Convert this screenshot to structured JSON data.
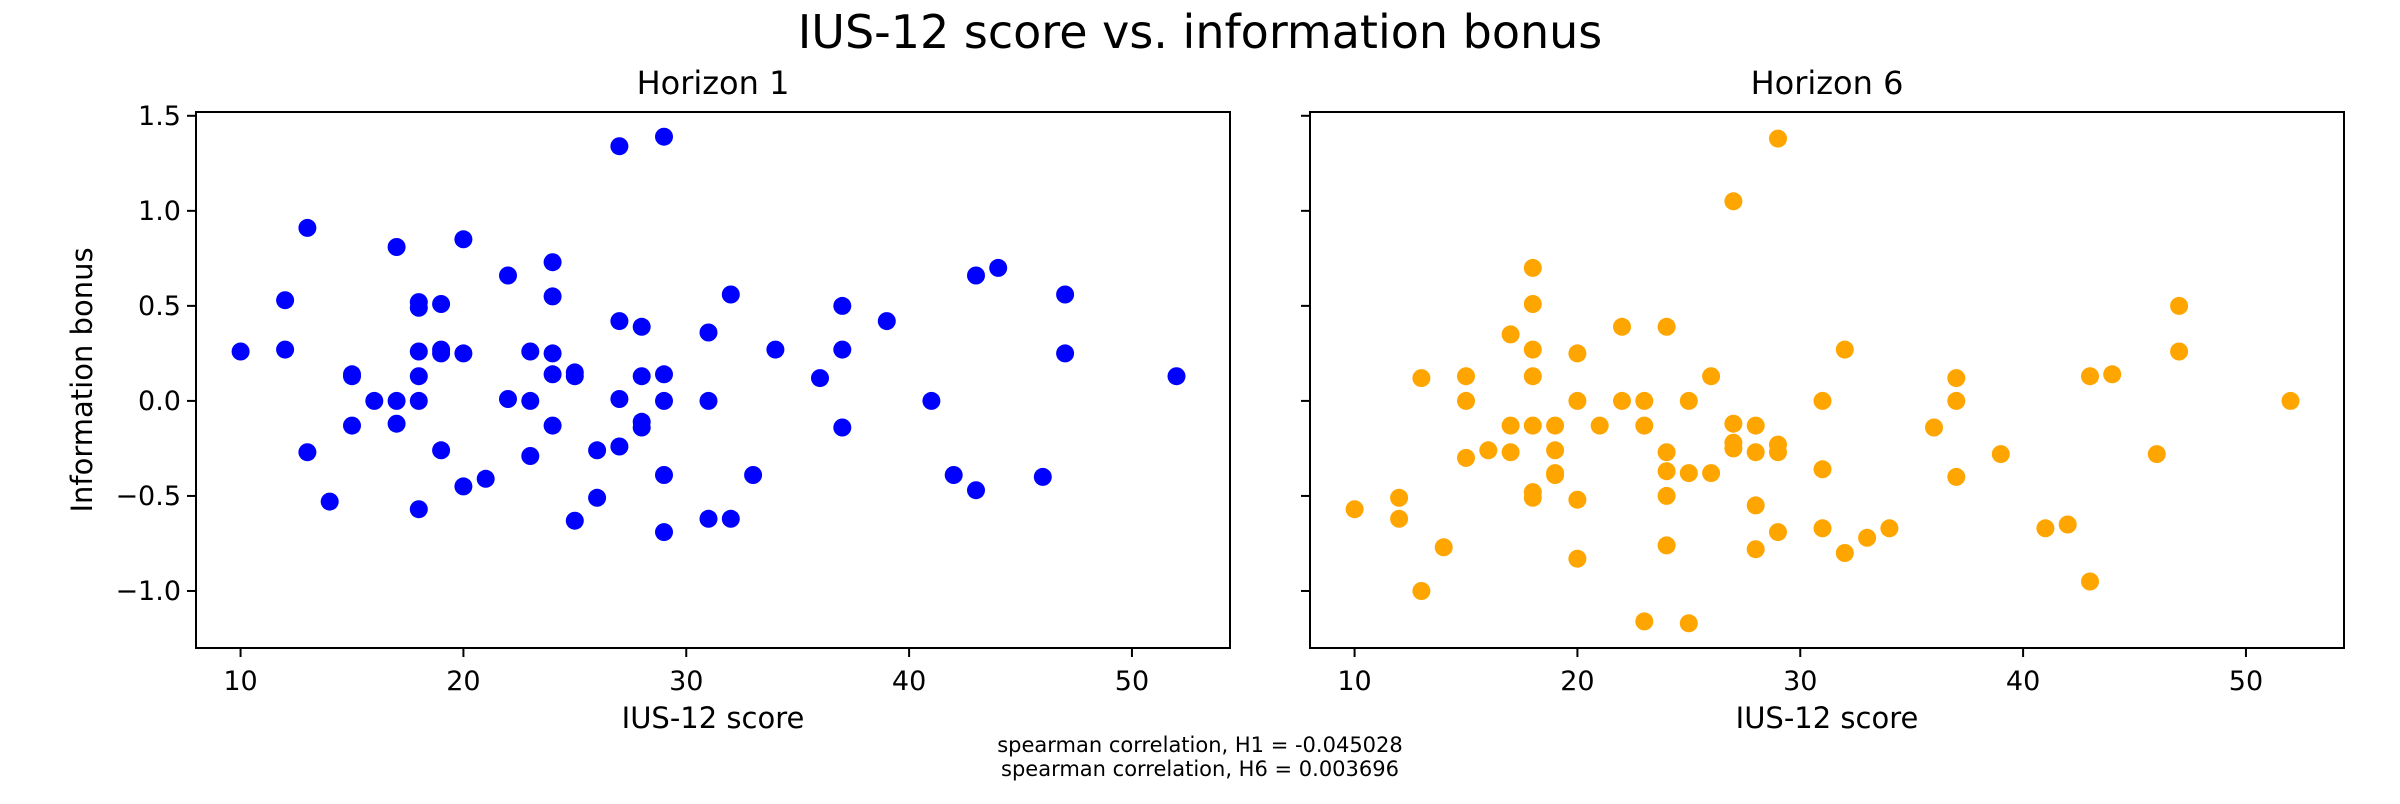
{
  "figure": {
    "title": "IUS-12 score vs. information bonus",
    "footnotes": [
      "spearman correlation, H1 = -0.045028",
      "spearman correlation, H6 = 0.003696"
    ]
  },
  "chart_data": [
    {
      "type": "scatter",
      "title": "Horizon 1",
      "xlabel": "IUS-12 score",
      "ylabel": "Information bonus",
      "xlim": [
        8,
        54.4
      ],
      "ylim": [
        -1.3,
        1.52
      ],
      "xticks": [
        10,
        20,
        30,
        40,
        50
      ],
      "yticks": [
        -1.0,
        -0.5,
        0.0,
        0.5,
        1.0,
        1.5
      ],
      "grid": false,
      "color": "#0000ff",
      "points": [
        [
          10,
          0.26
        ],
        [
          12,
          0.53
        ],
        [
          12,
          0.27
        ],
        [
          13,
          0.91
        ],
        [
          13,
          -0.27
        ],
        [
          14,
          -0.53
        ],
        [
          15,
          0.14
        ],
        [
          15,
          0.13
        ],
        [
          15,
          -0.13
        ],
        [
          16,
          0.0
        ],
        [
          17,
          0.81
        ],
        [
          17,
          0.0
        ],
        [
          17,
          -0.12
        ],
        [
          18,
          0.52
        ],
        [
          18,
          0.49
        ],
        [
          18,
          0.26
        ],
        [
          18,
          0.13
        ],
        [
          18,
          0.0
        ],
        [
          18,
          -0.57
        ],
        [
          19,
          0.51
        ],
        [
          19,
          0.27
        ],
        [
          19,
          0.25
        ],
        [
          19,
          -0.26
        ],
        [
          20,
          0.85
        ],
        [
          20,
          0.25
        ],
        [
          20,
          -0.45
        ],
        [
          21,
          -0.41
        ],
        [
          22,
          0.66
        ],
        [
          22,
          0.01
        ],
        [
          23,
          0.26
        ],
        [
          23,
          0.0
        ],
        [
          23,
          -0.29
        ],
        [
          24,
          0.73
        ],
        [
          24,
          0.55
        ],
        [
          24,
          0.25
        ],
        [
          24,
          0.14
        ],
        [
          24,
          -0.13
        ],
        [
          25,
          0.15
        ],
        [
          25,
          0.13
        ],
        [
          25,
          -0.63
        ],
        [
          26,
          -0.26
        ],
        [
          26,
          -0.51
        ],
        [
          27,
          1.34
        ],
        [
          27,
          0.42
        ],
        [
          27,
          0.01
        ],
        [
          27,
          -0.24
        ],
        [
          28,
          0.39
        ],
        [
          28,
          0.13
        ],
        [
          28,
          -0.11
        ],
        [
          28,
          -0.14
        ],
        [
          29,
          1.39
        ],
        [
          29,
          0.14
        ],
        [
          29,
          0.0
        ],
        [
          29,
          -0.39
        ],
        [
          29,
          -0.69
        ],
        [
          31,
          0.36
        ],
        [
          31,
          0.0
        ],
        [
          31,
          -0.62
        ],
        [
          32,
          0.56
        ],
        [
          32,
          -0.62
        ],
        [
          33,
          -0.39
        ],
        [
          34,
          0.27
        ],
        [
          36,
          0.12
        ],
        [
          37,
          0.5
        ],
        [
          37,
          0.27
        ],
        [
          37,
          -0.14
        ],
        [
          39,
          0.42
        ],
        [
          41,
          0.0
        ],
        [
          42,
          -0.39
        ],
        [
          43,
          0.66
        ],
        [
          43,
          -0.47
        ],
        [
          44,
          0.7
        ],
        [
          46,
          -0.4
        ],
        [
          47,
          0.56
        ],
        [
          47,
          0.25
        ],
        [
          52,
          0.13
        ]
      ]
    },
    {
      "type": "scatter",
      "title": "Horizon 6",
      "xlabel": "IUS-12 score",
      "ylabel": "",
      "xlim": [
        8,
        54.4
      ],
      "ylim": [
        -1.3,
        1.52
      ],
      "xticks": [
        10,
        20,
        30,
        40,
        50
      ],
      "yticks": [
        -1.0,
        -0.5,
        0.0,
        0.5,
        1.0,
        1.5
      ],
      "grid": false,
      "color": "#ffa500",
      "points": [
        [
          10,
          -0.57
        ],
        [
          12,
          -0.51
        ],
        [
          12,
          -0.62
        ],
        [
          13,
          0.12
        ],
        [
          13,
          -1.0
        ],
        [
          14,
          -0.77
        ],
        [
          15,
          0.13
        ],
        [
          15,
          0.0
        ],
        [
          15,
          -0.3
        ],
        [
          16,
          -0.26
        ],
        [
          17,
          0.35
        ],
        [
          17,
          -0.13
        ],
        [
          17,
          -0.27
        ],
        [
          18,
          0.7
        ],
        [
          18,
          0.51
        ],
        [
          18,
          0.27
        ],
        [
          18,
          0.13
        ],
        [
          18,
          -0.13
        ],
        [
          18,
          -0.48
        ],
        [
          18,
          -0.51
        ],
        [
          19,
          -0.13
        ],
        [
          19,
          -0.26
        ],
        [
          19,
          -0.38
        ],
        [
          19,
          -0.39
        ],
        [
          20,
          0.25
        ],
        [
          20,
          0.0
        ],
        [
          20,
          -0.52
        ],
        [
          20,
          -0.83
        ],
        [
          21,
          -0.13
        ],
        [
          22,
          0.39
        ],
        [
          22,
          0.0
        ],
        [
          23,
          0.0
        ],
        [
          23,
          -0.13
        ],
        [
          23,
          -1.16
        ],
        [
          24,
          0.39
        ],
        [
          24,
          -0.27
        ],
        [
          24,
          -0.37
        ],
        [
          24,
          -0.5
        ],
        [
          24,
          -0.76
        ],
        [
          25,
          0.0
        ],
        [
          25,
          -0.38
        ],
        [
          25,
          -1.17
        ],
        [
          26,
          0.13
        ],
        [
          26,
          -0.38
        ],
        [
          27,
          1.05
        ],
        [
          27,
          -0.12
        ],
        [
          27,
          -0.22
        ],
        [
          27,
          -0.25
        ],
        [
          28,
          -0.13
        ],
        [
          28,
          -0.27
        ],
        [
          28,
          -0.55
        ],
        [
          28,
          -0.78
        ],
        [
          29,
          1.38
        ],
        [
          29,
          -0.23
        ],
        [
          29,
          -0.27
        ],
        [
          29,
          -0.69
        ],
        [
          31,
          0.0
        ],
        [
          31,
          -0.36
        ],
        [
          31,
          -0.67
        ],
        [
          32,
          0.27
        ],
        [
          32,
          -0.8
        ],
        [
          33,
          -0.72
        ],
        [
          34,
          -0.67
        ],
        [
          36,
          -0.14
        ],
        [
          37,
          0.12
        ],
        [
          37,
          0.0
        ],
        [
          37,
          -0.4
        ],
        [
          39,
          -0.28
        ],
        [
          41,
          -0.67
        ],
        [
          42,
          -0.65
        ],
        [
          43,
          0.13
        ],
        [
          43,
          -0.95
        ],
        [
          44,
          0.14
        ],
        [
          46,
          -0.28
        ],
        [
          47,
          0.5
        ],
        [
          47,
          0.26
        ],
        [
          52,
          0.0
        ]
      ]
    }
  ]
}
